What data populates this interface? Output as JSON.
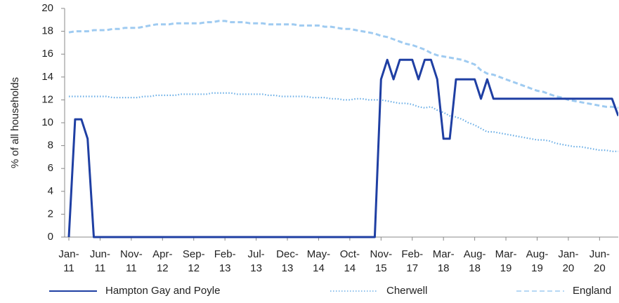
{
  "chart_data": {
    "type": "line",
    "ylabel": "% of all households",
    "categories": [
      "Jan-11",
      null,
      null,
      null,
      null,
      "Jun-11",
      null,
      null,
      null,
      null,
      "Nov-11",
      null,
      null,
      null,
      null,
      "Apr-12",
      null,
      null,
      null,
      null,
      "Sep-12",
      null,
      null,
      null,
      null,
      "Feb-13",
      null,
      null,
      null,
      null,
      "Jul-13",
      null,
      null,
      null,
      null,
      "Dec-13",
      null,
      null,
      null,
      null,
      "May-14",
      null,
      null,
      null,
      null,
      "Oct-14",
      null,
      null,
      null,
      null,
      "Nov-15",
      null,
      null,
      null,
      null,
      "Feb-17",
      null,
      null,
      null,
      null,
      "Mar-18",
      null,
      null,
      null,
      null,
      "Aug-18",
      null,
      null,
      null,
      null,
      "Mar-19",
      null,
      null,
      null,
      null,
      "Aug-19",
      null,
      null,
      null,
      null,
      "Jan-20",
      null,
      null,
      null,
      null,
      "Jun-20",
      null,
      null,
      null
    ],
    "series": [
      {
        "name": "Hampton Gay and Poyle",
        "color": "#1f3fa3",
        "style": "solid",
        "values": [
          0,
          10.3,
          10.3,
          8.6,
          0,
          0,
          0,
          0,
          0,
          0,
          0,
          0,
          0,
          0,
          0,
          0,
          0,
          0,
          0,
          0,
          0,
          0,
          0,
          0,
          0,
          0,
          0,
          0,
          0,
          0,
          0,
          0,
          0,
          0,
          0,
          0,
          0,
          0,
          0,
          0,
          0,
          0,
          0,
          0,
          0,
          0,
          0,
          0,
          0,
          0,
          13.8,
          15.5,
          13.8,
          15.5,
          15.5,
          15.5,
          13.8,
          15.5,
          15.5,
          13.8,
          8.6,
          8.6,
          13.8,
          13.8,
          13.8,
          13.8,
          12.1,
          13.8,
          12.1,
          12.1,
          12.1,
          12.1,
          12.1,
          12.1,
          12.1,
          12.1,
          12.1,
          12.1,
          12.1,
          12.1,
          12.1,
          12.1,
          12.1,
          12.1,
          12.1,
          12.1,
          12.1,
          12.1,
          10.6
        ]
      },
      {
        "name": "Cherwell",
        "color": "#6aaee6",
        "style": "dotted",
        "values": [
          12.3,
          12.3,
          12.3,
          12.3,
          12.3,
          12.3,
          12.3,
          12.2,
          12.2,
          12.2,
          12.2,
          12.2,
          12.3,
          12.3,
          12.4,
          12.4,
          12.4,
          12.4,
          12.5,
          12.5,
          12.5,
          12.5,
          12.5,
          12.6,
          12.6,
          12.6,
          12.6,
          12.5,
          12.5,
          12.5,
          12.5,
          12.5,
          12.4,
          12.4,
          12.3,
          12.3,
          12.3,
          12.3,
          12.3,
          12.2,
          12.2,
          12.2,
          12.1,
          12.1,
          12.0,
          12.0,
          12.1,
          12.1,
          12.0,
          12.0,
          12.0,
          11.9,
          11.8,
          11.7,
          11.7,
          11.6,
          11.4,
          11.3,
          11.4,
          11.1,
          10.9,
          10.6,
          10.5,
          10.3,
          10.0,
          9.8,
          9.5,
          9.2,
          9.2,
          9.1,
          9.0,
          8.9,
          8.8,
          8.7,
          8.6,
          8.5,
          8.5,
          8.4,
          8.2,
          8.1,
          8.0,
          7.9,
          7.9,
          7.8,
          7.7,
          7.6,
          7.6,
          7.5,
          7.5
        ]
      },
      {
        "name": "England",
        "color": "#9fcbf1",
        "style": "dashed",
        "values": [
          17.9,
          18.0,
          18.0,
          18.0,
          18.1,
          18.1,
          18.1,
          18.2,
          18.2,
          18.3,
          18.3,
          18.3,
          18.4,
          18.5,
          18.6,
          18.6,
          18.6,
          18.7,
          18.7,
          18.7,
          18.7,
          18.7,
          18.8,
          18.8,
          18.9,
          18.9,
          18.8,
          18.8,
          18.8,
          18.7,
          18.7,
          18.7,
          18.6,
          18.6,
          18.6,
          18.6,
          18.6,
          18.5,
          18.5,
          18.5,
          18.5,
          18.4,
          18.4,
          18.3,
          18.2,
          18.2,
          18.1,
          18.0,
          17.9,
          17.8,
          17.6,
          17.5,
          17.3,
          17.1,
          16.9,
          16.8,
          16.6,
          16.4,
          16.1,
          15.9,
          15.8,
          15.7,
          15.6,
          15.5,
          15.3,
          15.1,
          14.6,
          14.3,
          14.2,
          14.0,
          13.8,
          13.6,
          13.4,
          13.2,
          13.0,
          12.8,
          12.7,
          12.5,
          12.3,
          12.2,
          12.0,
          11.9,
          11.8,
          11.7,
          11.6,
          11.5,
          11.4,
          11.4,
          11.3
        ]
      }
    ],
    "ylim": [
      0,
      20
    ],
    "yticks": [
      0,
      2,
      4,
      6,
      8,
      10,
      12,
      14,
      16,
      18,
      20
    ]
  }
}
